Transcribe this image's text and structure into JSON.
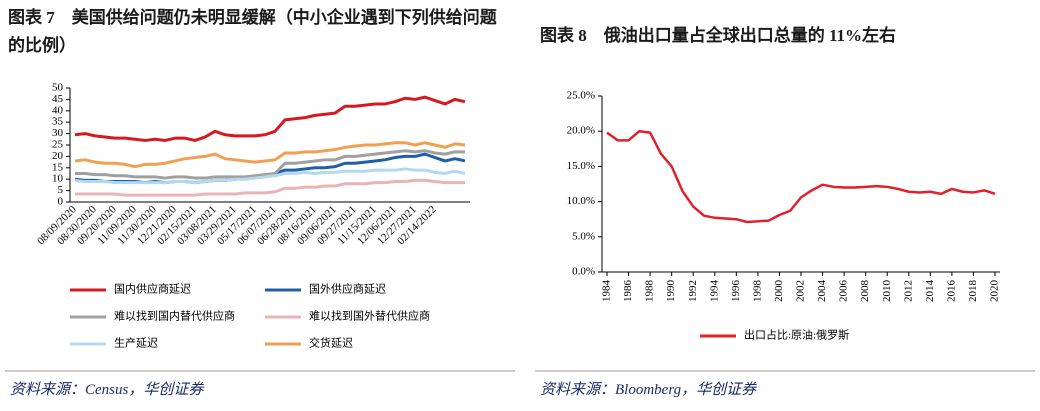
{
  "chart_data": [
    {
      "type": "line",
      "title": "图表 7　美国供给问题仍未明显缓解（中小企业遇到下列供给问题的比例）",
      "source": "资料来源：Census，华创证券",
      "categories": [
        "08/09/2020",
        null,
        "08/30/2020",
        null,
        "09/20/2020",
        null,
        "11/09/2020",
        null,
        "11/30/2020",
        null,
        "12/21/2020",
        null,
        "02/15/2021",
        null,
        "03/08/2021",
        null,
        "03/29/2021",
        null,
        "05/17/2021",
        null,
        "06/07/2021",
        null,
        "06/28/2021",
        null,
        "08/16/2021",
        null,
        "09/06/2021",
        null,
        "09/27/2021",
        null,
        "11/15/2021",
        null,
        "12/06/2021",
        null,
        "12/27/2021",
        null,
        "02/14/2022",
        null,
        null,
        null
      ],
      "ylim": [
        0,
        50
      ],
      "yticks": [
        0,
        5,
        10,
        15,
        20,
        25,
        30,
        35,
        40,
        45,
        50
      ],
      "series": [
        {
          "name": "国内供应商延迟",
          "color": "#d7191f",
          "values": [
            29.5,
            30,
            29,
            28.5,
            28,
            28,
            27.5,
            27,
            27.5,
            27,
            28,
            28,
            27,
            28.5,
            31,
            29.5,
            29,
            29,
            29,
            29.5,
            31,
            36,
            36.5,
            37,
            38,
            38.5,
            39,
            42,
            42,
            42.5,
            43,
            43,
            44,
            45.5,
            45,
            46,
            44.5,
            43,
            45,
            44
          ]
        },
        {
          "name": "国外供应商延迟",
          "color": "#1f5fa8",
          "values": [
            10,
            9.5,
            9.5,
            9,
            9,
            9,
            9,
            8.5,
            9,
            8.5,
            9,
            9,
            8.5,
            9,
            9.5,
            9.5,
            10,
            10.5,
            11,
            11.5,
            12.5,
            14,
            14,
            14.5,
            15,
            15,
            15.5,
            17,
            17,
            17.5,
            18,
            18.5,
            19.5,
            20,
            20,
            21,
            19.5,
            18,
            19,
            18
          ]
        },
        {
          "name": "难以找到国内替代供应商",
          "color": "#a0a0a0",
          "values": [
            12.5,
            12.5,
            12,
            12,
            11.5,
            11.5,
            11,
            11,
            11,
            10.5,
            11,
            11,
            10.5,
            10.5,
            11,
            11,
            11,
            11,
            11.5,
            12,
            12.5,
            17,
            17,
            17.5,
            18,
            18.5,
            18.5,
            20,
            20,
            20.5,
            21,
            21.5,
            22,
            22.5,
            22,
            22.5,
            21.5,
            21,
            22,
            22
          ]
        },
        {
          "name": "难以找到国外替代供应商",
          "color": "#e8b4b6",
          "values": [
            3.5,
            3.5,
            3.5,
            3.5,
            3.5,
            3,
            3,
            3,
            3,
            3,
            3,
            3,
            3,
            3.5,
            3.5,
            3.5,
            3.5,
            4,
            4,
            4,
            4.5,
            6,
            6,
            6.5,
            6.5,
            7,
            7,
            8,
            8,
            8,
            8.5,
            8.5,
            9,
            9,
            9.5,
            9.5,
            9,
            8.5,
            8.5,
            8.5
          ]
        },
        {
          "name": "生产延迟",
          "color": "#b4d8ef",
          "values": [
            9.5,
            9,
            9,
            9,
            8.5,
            8.5,
            8.5,
            8.5,
            8.5,
            8.5,
            9,
            9,
            8.5,
            9,
            9.5,
            9.5,
            10,
            10,
            10.5,
            11,
            11.5,
            12.5,
            12.5,
            13,
            12.5,
            13,
            13,
            13.5,
            13.5,
            13.5,
            14,
            14,
            14,
            14.5,
            14,
            14,
            13,
            12.5,
            13.5,
            12.5
          ]
        },
        {
          "name": "交货延迟",
          "color": "#f0a050",
          "values": [
            18,
            18.5,
            17.5,
            17,
            17,
            16.5,
            15.5,
            16.5,
            16.5,
            17,
            18,
            19,
            19.5,
            20,
            21,
            19,
            18.5,
            18,
            17.5,
            18,
            18.5,
            21.5,
            21.5,
            22,
            22,
            22.5,
            23,
            24,
            24.5,
            25,
            25,
            25.5,
            26,
            26,
            25,
            26,
            25,
            24,
            25.5,
            25
          ]
        }
      ]
    },
    {
      "type": "line",
      "title": "图表 8　俄油出口量占全球出口总量的 11%左右",
      "source": "资料来源：Bloomberg，华创证券",
      "x": [
        1984,
        1985,
        1986,
        1987,
        1988,
        1989,
        1990,
        1991,
        1992,
        1993,
        1994,
        1995,
        1996,
        1997,
        1998,
        1999,
        2000,
        2001,
        2002,
        2003,
        2004,
        2005,
        2006,
        2007,
        2008,
        2009,
        2010,
        2011,
        2012,
        2013,
        2014,
        2015,
        2016,
        2017,
        2018,
        2019,
        2020
      ],
      "xlim": [
        1984,
        2020
      ],
      "xticks": [
        1984,
        1986,
        1988,
        1990,
        1992,
        1994,
        1996,
        1998,
        2000,
        2002,
        2004,
        2006,
        2008,
        2010,
        2012,
        2014,
        2016,
        2018,
        2020
      ],
      "ylim": [
        0,
        25
      ],
      "yticks": [
        {
          "value": 0,
          "label": "0.0%"
        },
        {
          "value": 5,
          "label": "5.0%"
        },
        {
          "value": 10,
          "label": "10.0%"
        },
        {
          "value": 15,
          "label": "15.0%"
        },
        {
          "value": 20,
          "label": "20.0%"
        },
        {
          "value": 25,
          "label": "25.0%"
        }
      ],
      "series": [
        {
          "name": "出口占比:原油:俄罗斯",
          "color": "#e0202a",
          "values": [
            19.8,
            18.7,
            18.7,
            20,
            19.8,
            16.8,
            15,
            11.5,
            9.3,
            8,
            7.7,
            7.6,
            7.5,
            7.1,
            7.2,
            7.3,
            8.1,
            8.7,
            10.6,
            11.6,
            12.4,
            12.1,
            12,
            12,
            12.1,
            12.2,
            12.1,
            11.8,
            11.4,
            11.3,
            11.4,
            11.1,
            11.8,
            11.4,
            11.3,
            11.6,
            11.1
          ]
        }
      ]
    }
  ]
}
